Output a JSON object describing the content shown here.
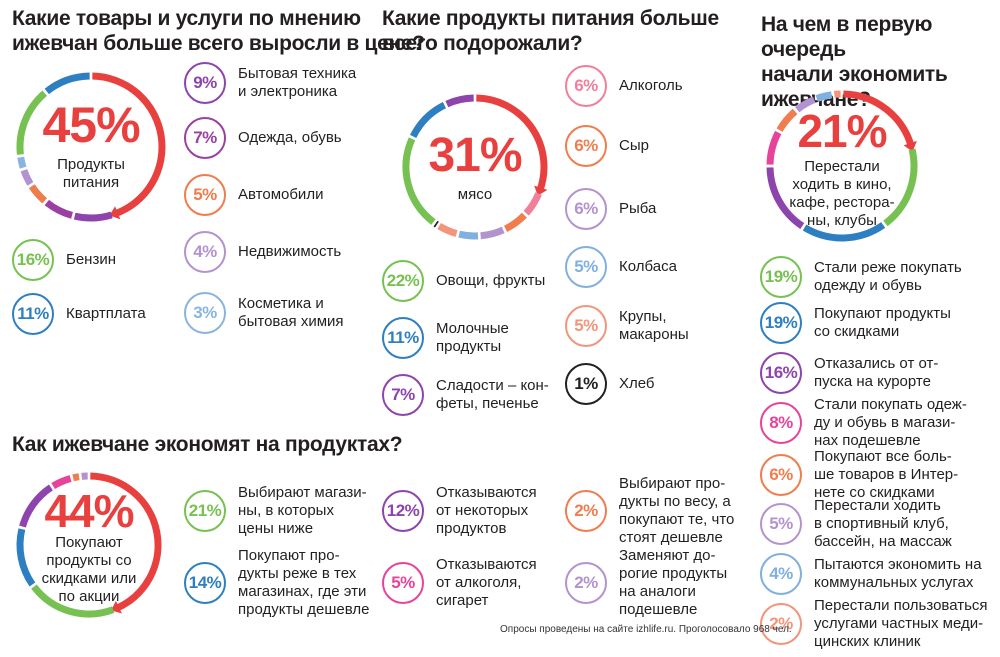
{
  "footnote": "Опросы проведены на сайте izhlife.ru. Проголосовало 968 чел.",
  "chart_data": [
    {
      "type": "donut",
      "title": "Какие товары и услуги по мнению\nижевчан больше всего выросли в цене?",
      "main": {
        "value": "45%",
        "label": "Продукты\nпитания"
      },
      "items": [
        {
          "value": "9%",
          "label": "Бытовая техника\nи электроника",
          "color": "#8e44ad"
        },
        {
          "value": "7%",
          "label": "Одежда, обувь",
          "color": "#9b3fa3"
        },
        {
          "value": "5%",
          "label": "Автомобили",
          "color": "#ee7c4d"
        },
        {
          "value": "4%",
          "label": "Недвижимость",
          "color": "#b393cf"
        },
        {
          "value": "3%",
          "label": "Косметика и\nбытовая химия",
          "color": "#8ab4e0"
        },
        {
          "value": "16%",
          "label": "Бензин",
          "color": "#77c152"
        },
        {
          "value": "11%",
          "label": "Квартплата",
          "color": "#2e7fc1"
        }
      ]
    },
    {
      "type": "donut",
      "title": "Какие продукты питания больше\nвсего подорожали?",
      "main": {
        "value": "31%",
        "label": "мясо"
      },
      "items": [
        {
          "value": "6%",
          "label": "Алкоголь",
          "color": "#f07f9a"
        },
        {
          "value": "6%",
          "label": "Сыр",
          "color": "#ef7d4e"
        },
        {
          "value": "6%",
          "label": "Рыба",
          "color": "#b393cf"
        },
        {
          "value": "5%",
          "label": "Колбаса",
          "color": "#7fb0e0"
        },
        {
          "value": "5%",
          "label": "Крупы,\nмакароны",
          "color": "#f2957a"
        },
        {
          "value": "1%",
          "label": "Хлеб",
          "color": "#231f20"
        },
        {
          "value": "22%",
          "label": "Овощи, фрукты",
          "color": "#77c152"
        },
        {
          "value": "11%",
          "label": "Молочные\nпродукты",
          "color": "#2e7fc1"
        },
        {
          "value": "7%",
          "label": "Сладости – кон-\nфеты, печенье",
          "color": "#8e44ad"
        }
      ]
    },
    {
      "type": "donut",
      "title": "На чем в первую очередь\nначали экономить\nижевчане?",
      "main": {
        "value": "21%",
        "label": "Перестали\nходить в кино,\nкафе, рестора-\nны, клубы"
      },
      "items": [
        {
          "value": "19%",
          "label": "Стали реже покупать\nодежду и обувь",
          "color": "#77c152"
        },
        {
          "value": "19%",
          "label": "Покупают продукты\nсо скидками",
          "color": "#2e7fc1"
        },
        {
          "value": "16%",
          "label": "Отказались от от-\nпуска на курорте",
          "color": "#8e44ad"
        },
        {
          "value": "8%",
          "label": "Стали покупать одеж-\nду и обувь в магази-\nнах подешевле",
          "color": "#e8439a"
        },
        {
          "value": "6%",
          "label": "Покупают все боль-\nше товаров в Интер-\nнете со скидками",
          "color": "#ef7d4e"
        },
        {
          "value": "5%",
          "label": "Перестали ходить\nв спортивный клуб,\nбассейн, на массаж",
          "color": "#b393cf"
        },
        {
          "value": "4%",
          "label": "Пытаются экономить на\nкоммунальных услугах",
          "color": "#7fb0e0"
        },
        {
          "value": "2%",
          "label": "Перестали пользоваться\nуслугами частных меди-\nцинских клиник",
          "color": "#f2957a"
        }
      ]
    },
    {
      "type": "donut",
      "title": "Как ижевчане экономят на продуктах?",
      "main": {
        "value": "44%",
        "label": "Покупают\nпродукты со\nскидками или\nпо акции"
      },
      "items": [
        {
          "value": "21%",
          "label": "Выбирают магази-\nны, в которых\nцены ниже",
          "color": "#77c152"
        },
        {
          "value": "14%",
          "label": "Покупают про-\nдукты реже в тех\nмагазинах, где эти\nпродукты дешевле",
          "color": "#2e7fc1"
        },
        {
          "value": "12%",
          "label": "Отказываются\nот некоторых\nпродуктов",
          "color": "#8e44ad"
        },
        {
          "value": "5%",
          "label": "Отказываются\nот алкоголя,\nсигарет",
          "color": "#e8439a"
        },
        {
          "value": "2%",
          "label": "Выбирают про-\nдукты по весу, а\nпокупают те, что\nстоят дешевле",
          "color": "#ef7d4e"
        },
        {
          "value": "2%",
          "label": "Заменяют до-\nрогие продукты\nна аналоги\nподешевле",
          "color": "#b393cf"
        }
      ]
    }
  ]
}
